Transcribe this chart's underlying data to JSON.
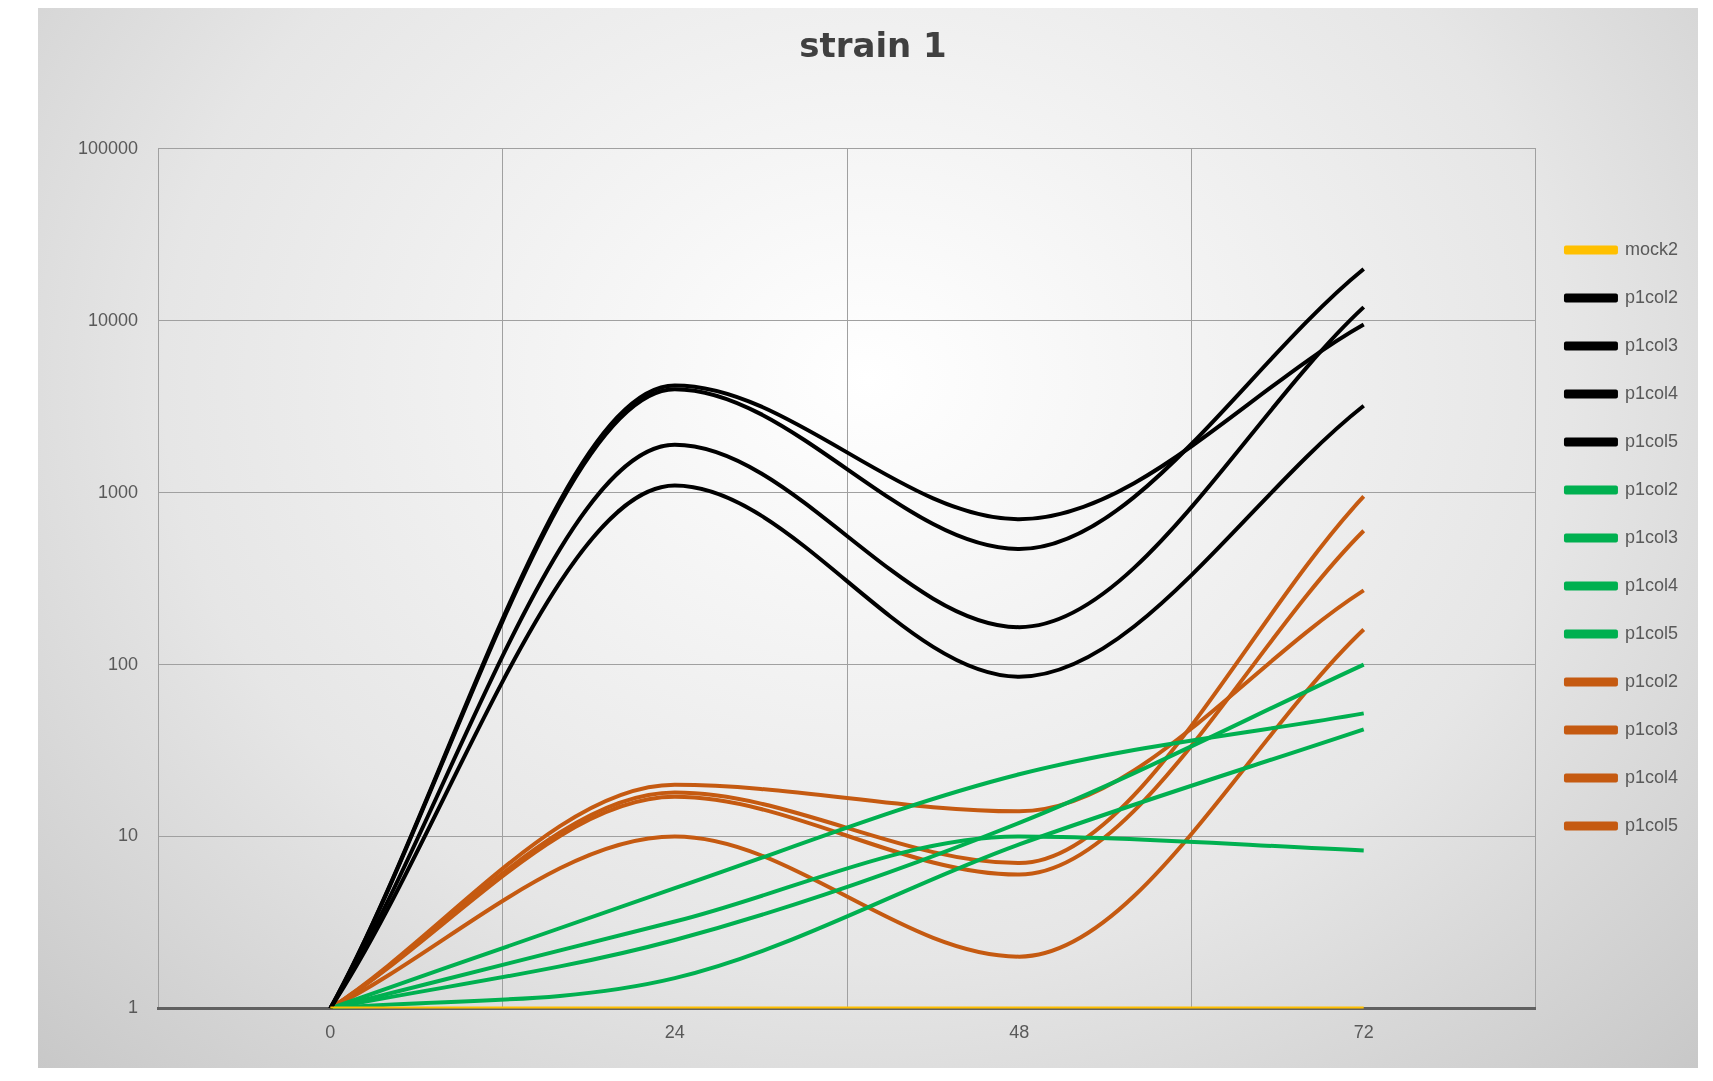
{
  "chart_data": {
    "type": "line",
    "title": "strain 1",
    "categories": [
      "0",
      "24",
      "48",
      "72"
    ],
    "log": true,
    "ylim": [
      1,
      100000
    ],
    "yticks": [
      1,
      10,
      100,
      1000,
      10000,
      100000
    ],
    "grid": true,
    "legend": "right",
    "marker": "none",
    "line_style": "solid",
    "series": [
      {
        "name": "mock2",
        "color": "#ffc000",
        "values": [
          1,
          1,
          1,
          1
        ]
      },
      {
        "name": "p1col2",
        "color": "#000000",
        "values": [
          1,
          4200,
          700,
          9500
        ]
      },
      {
        "name": "p1col3",
        "color": "#000000",
        "values": [
          1,
          4000,
          470,
          20000
        ]
      },
      {
        "name": "p1col4",
        "color": "#000000",
        "values": [
          1,
          1900,
          165,
          12000
        ]
      },
      {
        "name": "p1col5",
        "color": "#000000",
        "values": [
          1,
          1100,
          85,
          3200
        ]
      },
      {
        "name": "p1col2",
        "color": "#00b050",
        "values": [
          1,
          5,
          23,
          52
        ]
      },
      {
        "name": "p1col3",
        "color": "#00b050",
        "values": [
          1,
          3.2,
          10,
          8.3
        ]
      },
      {
        "name": "p1col4",
        "color": "#00b050",
        "values": [
          1,
          2.5,
          12,
          100
        ]
      },
      {
        "name": "p1col5",
        "color": "#00b050",
        "values": [
          1,
          1.5,
          9,
          42
        ]
      },
      {
        "name": "p1col2",
        "color": "#c55a11",
        "values": [
          1,
          20,
          14,
          270
        ]
      },
      {
        "name": "p1col3",
        "color": "#c55a11",
        "values": [
          1,
          18,
          7,
          950
        ]
      },
      {
        "name": "p1col4",
        "color": "#c55a11",
        "values": [
          1,
          17,
          6,
          600
        ]
      },
      {
        "name": "p1col5",
        "color": "#c55a11",
        "values": [
          1,
          10,
          2,
          160
        ]
      }
    ]
  }
}
